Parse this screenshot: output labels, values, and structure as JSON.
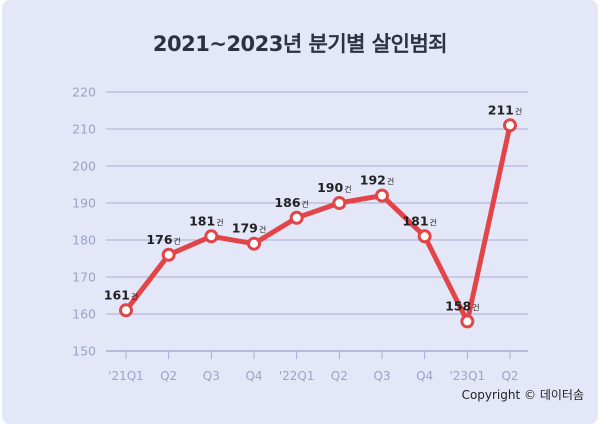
{
  "chart_data": {
    "type": "line",
    "title": "2021~2023년 분기별 살인범죄",
    "categories": [
      "'21Q1",
      "Q2",
      "Q3",
      "Q4",
      "'22Q1",
      "Q2",
      "Q3",
      "Q4",
      "'23Q1",
      "Q2"
    ],
    "values": [
      161,
      176,
      181,
      179,
      186,
      190,
      192,
      181,
      158,
      211
    ],
    "value_suffix": "건",
    "ylim": [
      150,
      220
    ],
    "yticks": [
      "150",
      "160",
      "170",
      "180",
      "190",
      "200",
      "210",
      "220"
    ],
    "grid": true,
    "colors": {
      "line": "#e24548",
      "grid": "#a7adcf",
      "background": "#e4e7f8"
    }
  },
  "footer": {
    "copyright": "Copyright © 데이터솜"
  }
}
